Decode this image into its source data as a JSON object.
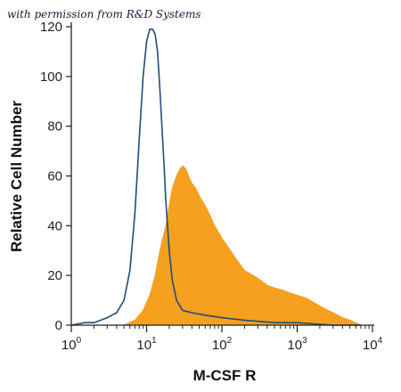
{
  "credit": "with permission from R&D Systems",
  "colors": {
    "filled": "#F5A01E",
    "outline": "#1F4E79",
    "axis": "#222222"
  },
  "chart_data": {
    "type": "area",
    "xlabel": "M-CSF R",
    "ylabel": "Relative Cell Number",
    "xscale": "log",
    "xlim": [
      1,
      10000
    ],
    "ylim": [
      0,
      120
    ],
    "yticks": [
      "0",
      "20",
      "40",
      "60",
      "80",
      "100",
      "120"
    ],
    "xticks": [
      {
        "base": "10",
        "exp": "0"
      },
      {
        "base": "10",
        "exp": "1"
      },
      {
        "base": "10",
        "exp": "2"
      },
      {
        "base": "10",
        "exp": "3"
      },
      {
        "base": "10",
        "exp": "4"
      }
    ],
    "series": [
      {
        "style": "outline",
        "x": [
          1.0,
          1.5,
          2.0,
          3.0,
          4.0,
          5.0,
          6.0,
          7.0,
          8.0,
          9.0,
          10.0,
          11.0,
          12.0,
          13.0,
          14.0,
          15.0,
          16.0,
          17.0,
          18.0,
          20.0,
          22.0,
          25.0,
          30.0,
          40.0,
          60.0,
          100.0,
          200.0,
          500.0,
          1000.0,
          3000.0,
          7000.0
        ],
        "values": [
          0,
          1,
          1,
          3,
          5,
          10,
          22,
          45,
          75,
          100,
          114,
          119,
          119,
          117,
          110,
          95,
          80,
          65,
          50,
          30,
          18,
          10,
          6,
          5,
          4,
          3,
          2,
          1,
          1,
          0,
          0
        ]
      },
      {
        "style": "filled",
        "x": [
          5.0,
          7.0,
          9.0,
          11.0,
          13.0,
          15.0,
          18.0,
          20.0,
          22.0,
          25.0,
          28.0,
          30.0,
          33.0,
          36.0,
          40.0,
          45.0,
          50.0,
          60.0,
          70.0,
          80.0,
          100.0,
          130.0,
          160.0,
          200.0,
          260.0,
          330.0,
          400.0,
          500.0,
          650.0,
          800.0,
          1000.0,
          1300.0,
          1700.0,
          2200.0,
          3000.0,
          4000.0,
          5000.0,
          6000.0,
          7000.0
        ],
        "values": [
          0,
          2,
          6,
          12,
          20,
          30,
          40,
          48,
          55,
          60,
          63,
          64,
          63,
          60,
          57,
          55,
          52,
          48,
          44,
          40,
          35,
          30,
          26,
          22,
          20,
          18,
          16,
          15,
          14,
          13,
          12,
          11,
          9,
          7,
          5,
          3,
          2,
          1,
          0
        ]
      }
    ]
  }
}
